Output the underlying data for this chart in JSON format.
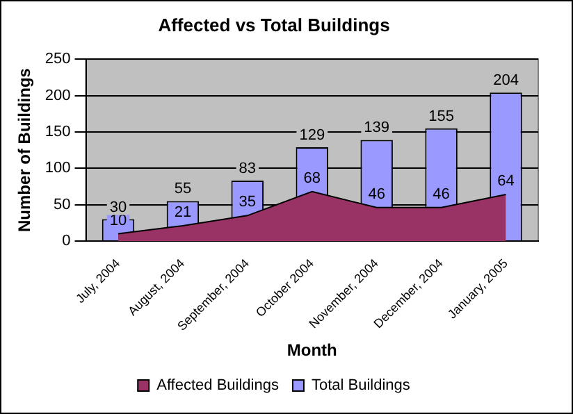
{
  "chart_data": {
    "type": "bar",
    "title": "Affected vs Total Buildings",
    "xlabel": "Month",
    "ylabel": "Number of Buildings",
    "categories": [
      "July, 2004",
      "August, 2004",
      "September, 2004",
      "October 2004",
      "November, 2004",
      "December, 2004",
      "January, 2005"
    ],
    "series": [
      {
        "name": "Affected Buildings",
        "type": "area",
        "color": "#993366",
        "values": [
          10,
          21,
          35,
          68,
          46,
          46,
          64
        ]
      },
      {
        "name": "Total Buildings",
        "type": "bar",
        "color": "#9999ff",
        "values": [
          30,
          55,
          83,
          129,
          139,
          155,
          204
        ]
      }
    ],
    "ylim": [
      0,
      250
    ],
    "yticks": [
      0,
      50,
      100,
      150,
      200,
      250
    ],
    "grid": "y",
    "legend": "bottom",
    "data_labels": true
  }
}
